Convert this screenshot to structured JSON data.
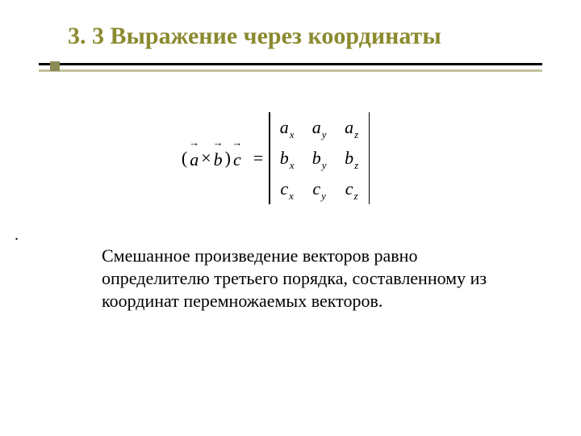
{
  "title": "3. 3 Выражение через координаты",
  "formula": {
    "lhs": {
      "open": "(",
      "a": "a",
      "times": "×",
      "b": "b",
      "close": ")",
      "c": "c",
      "eq": "="
    },
    "matrix": {
      "rows": [
        {
          "v": "a",
          "subs": [
            "x",
            "y",
            "z"
          ]
        },
        {
          "v": "b",
          "subs": [
            "x",
            "y",
            "z"
          ]
        },
        {
          "v": "c",
          "subs": [
            "x",
            "y",
            "z"
          ]
        }
      ]
    }
  },
  "stray_dot": ".",
  "paragraph": "Смешанное произведение векторов равно определителю третьего порядка, составленному из координат перемножаемых векторов.",
  "colors": {
    "title": "#8a8a30",
    "rule_thick": "#000000",
    "rule_thin": "#c2c29b",
    "marker": "#8a8a55",
    "bg": "#ffffff"
  },
  "typography": {
    "title_fontsize": 30,
    "body_fontsize": 22,
    "formula_fontsize": 22,
    "font_family": "Times New Roman"
  }
}
